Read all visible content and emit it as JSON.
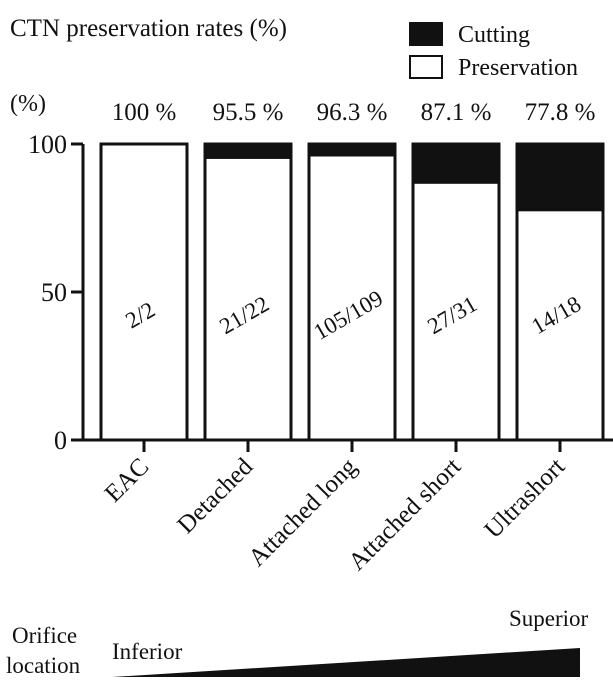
{
  "chart_data": {
    "type": "bar",
    "stacked": true,
    "title": "CTN preservation rates (%)",
    "ylabel": "(%)",
    "ylim": [
      0,
      100
    ],
    "yticks": [
      0,
      50,
      100
    ],
    "categories": [
      "EAC",
      "Detached",
      "Attached long",
      "Attached short",
      "Ultrashort"
    ],
    "series": [
      {
        "name": "Preservation",
        "values": [
          100,
          95.5,
          96.3,
          87.1,
          77.8
        ],
        "color": "#ffffff"
      },
      {
        "name": "Cutting",
        "values": [
          0,
          4.5,
          3.7,
          12.9,
          22.2
        ],
        "color": "#111111"
      }
    ],
    "top_labels": [
      "100 %",
      "95.5 %",
      "96.3 %",
      "87.1 %",
      "77.8 %"
    ],
    "fraction_labels": [
      "2/2",
      "21/22",
      "105/109",
      "27/31",
      "14/18"
    ],
    "legend": {
      "position": "top-right",
      "entries": [
        "Cutting",
        "Preservation"
      ]
    }
  },
  "orifice": {
    "label_line1": "Orifice",
    "label_line2": "location",
    "inferior": "Inferior",
    "superior": "Superior"
  }
}
